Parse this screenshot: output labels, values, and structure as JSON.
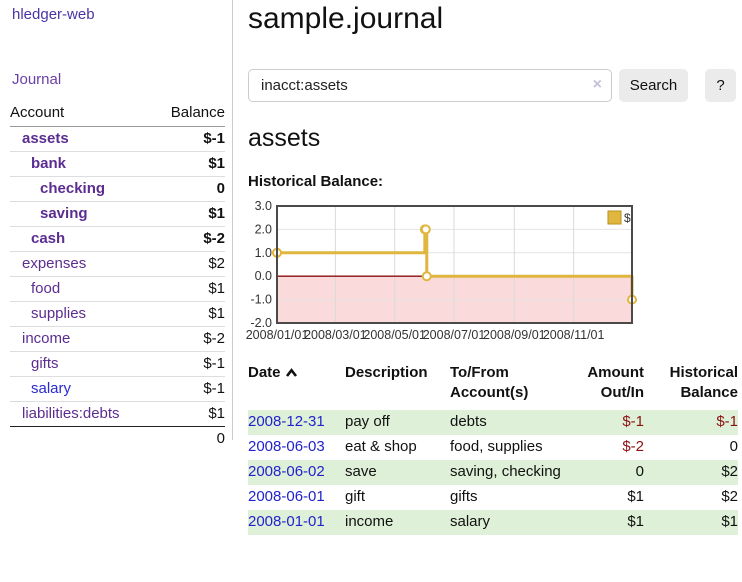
{
  "app": {
    "brand": "hledger-web"
  },
  "sidebar": {
    "nav": {
      "journal": "Journal"
    },
    "header": {
      "account": "Account",
      "balance": "Balance"
    },
    "accounts": [
      {
        "label": "assets",
        "indent_class": "d1",
        "row_class": "strong",
        "label_class": "",
        "balance": "$-1",
        "bal_class": "neg"
      },
      {
        "label": "bank",
        "indent_class": "d2",
        "row_class": "strong",
        "label_class": "",
        "balance": "$1",
        "bal_class": ""
      },
      {
        "label": "checking",
        "indent_class": "d3",
        "row_class": "strong",
        "label_class": "",
        "balance": "0",
        "bal_class": ""
      },
      {
        "label": "saving",
        "indent_class": "d3",
        "row_class": "strong",
        "label_class": "",
        "balance": "$1",
        "bal_class": ""
      },
      {
        "label": "cash",
        "indent_class": "d2",
        "row_class": "strong",
        "label_class": "",
        "balance": "$-2",
        "bal_class": "neg"
      },
      {
        "label": "expenses",
        "indent_class": "d1",
        "row_class": "",
        "label_class": "",
        "balance": "$2",
        "bal_class": ""
      },
      {
        "label": "food",
        "indent_class": "d2",
        "row_class": "",
        "label_class": "",
        "balance": "$1",
        "bal_class": ""
      },
      {
        "label": "supplies",
        "indent_class": "d2",
        "row_class": "",
        "label_class": "",
        "balance": "$1",
        "bal_class": ""
      },
      {
        "label": "income",
        "indent_class": "d1",
        "row_class": "",
        "label_class": "",
        "balance": "$-2",
        "bal_class": "rose"
      },
      {
        "label": "gifts",
        "indent_class": "d2",
        "row_class": "",
        "label_class": "",
        "balance": "$-1",
        "bal_class": "rose"
      },
      {
        "label": "salary",
        "indent_class": "d2",
        "row_class": "",
        "label_class": "alt",
        "balance": "$-1",
        "bal_class": "rose"
      },
      {
        "label": "liabilities:debts",
        "indent_class": "d1",
        "row_class": "",
        "label_class": "",
        "balance": "$1",
        "bal_class": ""
      }
    ],
    "total": "0"
  },
  "main": {
    "title": "sample.journal",
    "search": {
      "value": "inacct:assets",
      "clear": "×",
      "button": "Search",
      "help": "?"
    },
    "account_heading": "assets",
    "chart_label": "Historical Balance:"
  },
  "chart_data": {
    "type": "line",
    "style": "step-after",
    "title": "Historical Balance",
    "series": [
      {
        "name": "$",
        "color": "#e0b63e",
        "points": [
          {
            "date": "2008-01-01",
            "value": 1
          },
          {
            "date": "2008-06-01",
            "value": 2
          },
          {
            "date": "2008-06-02",
            "value": 2
          },
          {
            "date": "2008-06-03",
            "value": 0
          },
          {
            "date": "2008-12-31",
            "value": -1
          }
        ]
      }
    ],
    "x_ticks": [
      "2008/01/01",
      "2008/03/01",
      "2008/05/01",
      "2008/07/01",
      "2008/09/01",
      "2008/11/01"
    ],
    "y_ticks": [
      3.0,
      2.0,
      1.0,
      0.0,
      -1.0,
      -2.0
    ],
    "ylim": [
      -2,
      3
    ],
    "xlim": [
      "2008-01-01",
      "2008-12-31"
    ],
    "legend": [
      "$"
    ],
    "legend_position": "top-right",
    "grid": true,
    "negative_region_color": "#fadada",
    "zero_line_color": "#8b0e0e",
    "border_color": "#4a4a4a"
  },
  "register": {
    "headers": {
      "date": "Date",
      "description": "Description",
      "tofrom1": "To/From",
      "tofrom2": "Account(s)",
      "amount1": "Amount",
      "amount2": "Out/In",
      "hist1": "Historical",
      "hist2": "Balance"
    },
    "rows": [
      {
        "date": "2008-12-31",
        "description": "pay off",
        "accounts": "debts",
        "amount": "$-1",
        "amount_class": "neg",
        "balance": "$-1",
        "balance_class": "neg"
      },
      {
        "date": "2008-06-03",
        "description": "eat & shop",
        "accounts": "food, supplies",
        "amount": "$-2",
        "amount_class": "neg",
        "balance": "0",
        "balance_class": ""
      },
      {
        "date": "2008-06-02",
        "description": "save",
        "accounts": "saving, checking",
        "amount": "0",
        "amount_class": "",
        "balance": "$2",
        "balance_class": ""
      },
      {
        "date": "2008-06-01",
        "description": "gift",
        "accounts": "gifts",
        "amount": "$1",
        "amount_class": "",
        "balance": "$2",
        "balance_class": ""
      },
      {
        "date": "2008-01-01",
        "description": "income",
        "accounts": "salary",
        "amount": "$1",
        "amount_class": "",
        "balance": "$1",
        "balance_class": ""
      }
    ]
  },
  "colors": {
    "link_purple": "#5c2d91",
    "brand_purple": "#4a34a3",
    "date_blue": "#2222cc",
    "negative_red": "#8b1212",
    "muted_rose": "#c98383",
    "row_green": "#dff0d8",
    "series_yellow": "#e0b63e",
    "button_gray": "#ebebeb"
  }
}
